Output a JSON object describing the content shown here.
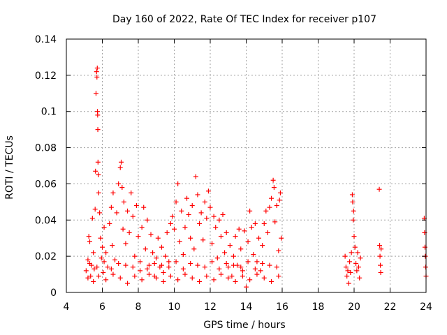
{
  "chart_data": {
    "type": "scatter",
    "title": "Day 160 of 2022, Rate Of TEC Index for receiver p107",
    "xlabel": "GPS time / hours",
    "ylabel": "ROTI / TECUs",
    "xlim": [
      4,
      24
    ],
    "ylim": [
      0,
      0.14
    ],
    "xticks": [
      4,
      6,
      8,
      10,
      12,
      14,
      16,
      18,
      20,
      22,
      24
    ],
    "yticks": [
      0,
      0.02,
      0.04,
      0.06,
      0.08,
      0.1,
      0.12,
      0.14
    ],
    "ytick_labels": [
      "0",
      "0.02",
      "0.04",
      "0.06",
      "0.08",
      "0.1",
      "0.12",
      "0.14"
    ],
    "grid": true,
    "marker": "+",
    "marker_color": "#ff0000",
    "series": [
      {
        "name": "ROTI",
        "points": [
          [
            5.1,
            0.012
          ],
          [
            5.2,
            0.018
          ],
          [
            5.25,
            0.031
          ],
          [
            5.3,
            0.028
          ],
          [
            5.35,
            0.009
          ],
          [
            5.4,
            0.015
          ],
          [
            5.45,
            0.041
          ],
          [
            5.5,
            0.022
          ],
          [
            5.55,
            0.013
          ],
          [
            5.6,
            0.046
          ],
          [
            5.62,
            0.067
          ],
          [
            5.65,
            0.11
          ],
          [
            5.68,
            0.122
          ],
          [
            5.7,
            0.119
          ],
          [
            5.72,
            0.124
          ],
          [
            5.73,
            0.1
          ],
          [
            5.74,
            0.098
          ],
          [
            5.75,
            0.09
          ],
          [
            5.76,
            0.072
          ],
          [
            5.78,
            0.065
          ],
          [
            5.8,
            0.055
          ],
          [
            5.85,
            0.044
          ],
          [
            5.9,
            0.03
          ],
          [
            5.95,
            0.019
          ],
          [
            6.0,
            0.025
          ],
          [
            6.05,
            0.011
          ],
          [
            6.1,
            0.036
          ],
          [
            6.2,
            0.022
          ],
          [
            6.3,
            0.014
          ],
          [
            6.4,
            0.038
          ],
          [
            6.5,
            0.047
          ],
          [
            6.55,
            0.026
          ],
          [
            6.6,
            0.055
          ],
          [
            6.7,
            0.018
          ],
          [
            6.8,
            0.044
          ],
          [
            6.9,
            0.06
          ],
          [
            7.0,
            0.069
          ],
          [
            7.05,
            0.072
          ],
          [
            7.1,
            0.058
          ],
          [
            7.15,
            0.035
          ],
          [
            7.2,
            0.05
          ],
          [
            7.3,
            0.027
          ],
          [
            7.4,
            0.045
          ],
          [
            7.5,
            0.033
          ],
          [
            7.6,
            0.055
          ],
          [
            7.7,
            0.042
          ],
          [
            7.8,
            0.02
          ],
          [
            7.9,
            0.048
          ],
          [
            8.0,
            0.031
          ],
          [
            8.1,
            0.012
          ],
          [
            8.2,
            0.036
          ],
          [
            8.3,
            0.047
          ],
          [
            8.4,
            0.024
          ],
          [
            8.5,
            0.04
          ],
          [
            8.6,
            0.015
          ],
          [
            8.7,
            0.032
          ],
          [
            8.8,
            0.022
          ],
          [
            8.9,
            0.009
          ],
          [
            9.0,
            0.019
          ],
          [
            9.1,
            0.03
          ],
          [
            9.2,
            0.014
          ],
          [
            9.3,
            0.025
          ],
          [
            9.4,
            0.011
          ],
          [
            9.5,
            0.02
          ],
          [
            9.6,
            0.033
          ],
          [
            9.7,
            0.017
          ],
          [
            9.8,
            0.038
          ],
          [
            9.9,
            0.042
          ],
          [
            10.0,
            0.035
          ],
          [
            10.1,
            0.05
          ],
          [
            10.2,
            0.06
          ],
          [
            10.3,
            0.028
          ],
          [
            10.4,
            0.045
          ],
          [
            10.5,
            0.021
          ],
          [
            10.6,
            0.036
          ],
          [
            10.7,
            0.052
          ],
          [
            10.8,
            0.043
          ],
          [
            10.9,
            0.03
          ],
          [
            11.0,
            0.048
          ],
          [
            11.1,
            0.024
          ],
          [
            11.2,
            0.064
          ],
          [
            11.3,
            0.054
          ],
          [
            11.4,
            0.038
          ],
          [
            11.5,
            0.044
          ],
          [
            11.6,
            0.029
          ],
          [
            11.7,
            0.05
          ],
          [
            11.8,
            0.041
          ],
          [
            11.9,
            0.056
          ],
          [
            12.0,
            0.047
          ],
          [
            12.1,
            0.027
          ],
          [
            12.2,
            0.042
          ],
          [
            12.3,
            0.036
          ],
          [
            12.4,
            0.019
          ],
          [
            12.5,
            0.04
          ],
          [
            12.6,
            0.031
          ],
          [
            12.7,
            0.043
          ],
          [
            12.8,
            0.022
          ],
          [
            12.9,
            0.033
          ],
          [
            13.0,
            0.014
          ],
          [
            13.1,
            0.026
          ],
          [
            13.2,
            0.009
          ],
          [
            13.3,
            0.02
          ],
          [
            13.4,
            0.031
          ],
          [
            13.5,
            0.015
          ],
          [
            13.6,
            0.035
          ],
          [
            13.7,
            0.024
          ],
          [
            13.8,
            0.012
          ],
          [
            13.9,
            0.034
          ],
          [
            14.0,
            0.003
          ],
          [
            14.1,
            0.028
          ],
          [
            14.2,
            0.045
          ],
          [
            14.3,
            0.036
          ],
          [
            14.4,
            0.021
          ],
          [
            14.5,
            0.038
          ],
          [
            14.6,
            0.017
          ],
          [
            14.7,
            0.03
          ],
          [
            14.8,
            0.012
          ],
          [
            14.9,
            0.026
          ],
          [
            15.0,
            0.038
          ],
          [
            15.1,
            0.045
          ],
          [
            15.2,
            0.033
          ],
          [
            15.3,
            0.047
          ],
          [
            15.4,
            0.052
          ],
          [
            15.5,
            0.062
          ],
          [
            15.55,
            0.058
          ],
          [
            15.6,
            0.039
          ],
          [
            15.7,
            0.048
          ],
          [
            15.8,
            0.023
          ],
          [
            15.85,
            0.051
          ],
          [
            15.9,
            0.055
          ],
          [
            15.95,
            0.03
          ],
          [
            5.2,
            0.008
          ],
          [
            5.5,
            0.006
          ],
          [
            5.8,
            0.009
          ],
          [
            6.2,
            0.007
          ],
          [
            6.6,
            0.01
          ],
          [
            7.0,
            0.008
          ],
          [
            7.4,
            0.005
          ],
          [
            7.8,
            0.009
          ],
          [
            8.2,
            0.007
          ],
          [
            8.6,
            0.01
          ],
          [
            9.0,
            0.008
          ],
          [
            9.4,
            0.006
          ],
          [
            9.8,
            0.009
          ],
          [
            10.2,
            0.007
          ],
          [
            10.6,
            0.01
          ],
          [
            11.0,
            0.008
          ],
          [
            11.4,
            0.006
          ],
          [
            11.8,
            0.009
          ],
          [
            12.2,
            0.007
          ],
          [
            12.6,
            0.01
          ],
          [
            13.0,
            0.008
          ],
          [
            13.4,
            0.006
          ],
          [
            13.8,
            0.009
          ],
          [
            14.2,
            0.007
          ],
          [
            14.6,
            0.01
          ],
          [
            15.0,
            0.008
          ],
          [
            15.4,
            0.006
          ],
          [
            15.8,
            0.009
          ],
          [
            5.3,
            0.016
          ],
          [
            5.7,
            0.014
          ],
          [
            6.1,
            0.017
          ],
          [
            6.5,
            0.013
          ],
          [
            6.9,
            0.016
          ],
          [
            7.3,
            0.015
          ],
          [
            7.7,
            0.014
          ],
          [
            8.1,
            0.017
          ],
          [
            8.5,
            0.013
          ],
          [
            8.9,
            0.016
          ],
          [
            9.3,
            0.015
          ],
          [
            9.7,
            0.014
          ],
          [
            10.1,
            0.017
          ],
          [
            10.5,
            0.013
          ],
          [
            10.9,
            0.016
          ],
          [
            11.3,
            0.015
          ],
          [
            11.7,
            0.014
          ],
          [
            12.1,
            0.017
          ],
          [
            12.5,
            0.013
          ],
          [
            12.9,
            0.016
          ],
          [
            13.3,
            0.015
          ],
          [
            13.7,
            0.014
          ],
          [
            14.1,
            0.017
          ],
          [
            14.5,
            0.013
          ],
          [
            14.9,
            0.016
          ],
          [
            15.3,
            0.015
          ],
          [
            15.7,
            0.014
          ],
          [
            19.5,
            0.02
          ],
          [
            19.55,
            0.014
          ],
          [
            19.6,
            0.009
          ],
          [
            19.65,
            0.012
          ],
          [
            19.7,
            0.005
          ],
          [
            19.75,
            0.017
          ],
          [
            19.8,
            0.011
          ],
          [
            19.85,
            0.022
          ],
          [
            19.9,
            0.054
          ],
          [
            19.92,
            0.05
          ],
          [
            19.95,
            0.04
          ],
          [
            19.97,
            0.045
          ],
          [
            20.0,
            0.031
          ],
          [
            20.05,
            0.025
          ],
          [
            20.1,
            0.016
          ],
          [
            20.15,
            0.012
          ],
          [
            20.2,
            0.022
          ],
          [
            20.25,
            0.014
          ],
          [
            20.3,
            0.008
          ],
          [
            20.35,
            0.019
          ],
          [
            21.4,
            0.057
          ],
          [
            21.42,
            0.026
          ],
          [
            21.44,
            0.02
          ],
          [
            21.46,
            0.015
          ],
          [
            21.48,
            0.011
          ],
          [
            21.5,
            0.024
          ],
          [
            23.9,
            0.041
          ],
          [
            23.92,
            0.033
          ],
          [
            23.94,
            0.025
          ],
          [
            23.96,
            0.02
          ],
          [
            23.98,
            0.014
          ],
          [
            24.0,
            0.009
          ]
        ]
      }
    ]
  }
}
